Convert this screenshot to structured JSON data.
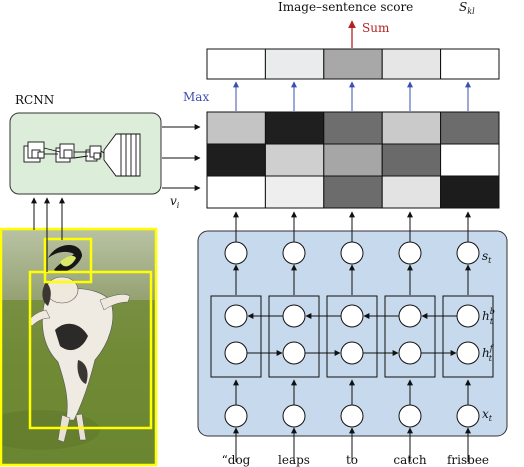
{
  "title": {
    "text": "Image–sentence score",
    "symbol": "S",
    "symbol_sub": "kl"
  },
  "sum_label": "Sum",
  "max_label": "Max",
  "rcnn_label": "RCNN",
  "region_label": {
    "symbol": "v",
    "sub": "i"
  },
  "rnn_labels": {
    "s": {
      "symbol": "s",
      "sub": "t"
    },
    "hb": {
      "symbol": "h",
      "sup": "b",
      "sub": "t"
    },
    "hf": {
      "symbol": "h",
      "sup": "f",
      "sub": "t"
    },
    "x": {
      "symbol": "x",
      "sub": "t"
    }
  },
  "words": [
    "“dog",
    "leaps",
    "to",
    "catch",
    "frisbee"
  ],
  "score_row": [
    "#ffffff",
    "#e9ecec",
    "#a8a8a8",
    "#e6e6e6",
    "#ffffff"
  ],
  "alignment_grid": [
    [
      "#c4c4c4",
      "#1f1f1f",
      "#6e6e6e",
      "#cacaca",
      "#6c6c6c"
    ],
    [
      "#1e1e1e",
      "#cfcfcf",
      "#a6a6a6",
      "#6a6a6a",
      "#ffffff"
    ],
    [
      "#ffffff",
      "#eeeeee",
      "#6c6c6c",
      "#e3e3e3",
      "#1c1c1c"
    ]
  ],
  "colors": {
    "rnn_panel": "#c7d9ec",
    "rcnn_panel": "#dcedd9",
    "sum_arrow": "#b22222",
    "max_arrow": "#3b4fb0",
    "region_box": "#ffff00"
  }
}
